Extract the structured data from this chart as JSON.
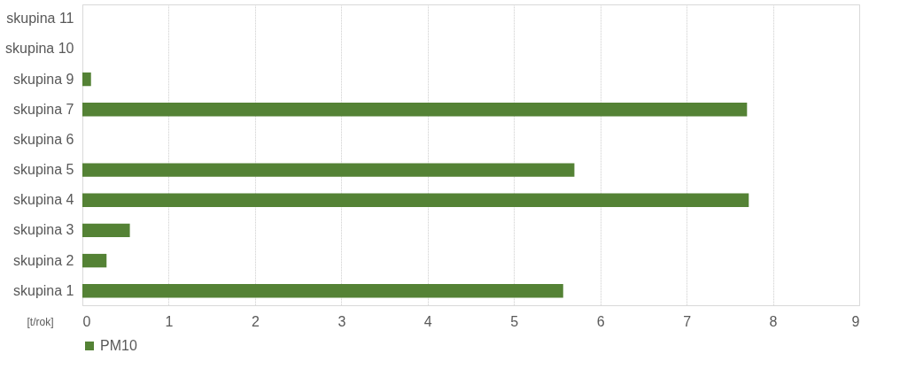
{
  "chart_data": {
    "type": "bar",
    "orientation": "horizontal",
    "xlabel": "[t/rok]",
    "categories": [
      "skupina 11",
      "skupina 10",
      "skupina 9",
      "skupina 7",
      "skupina 6",
      "skupina 5",
      "skupina 4",
      "skupina 3",
      "skupina 2",
      "skupina 1"
    ],
    "series": [
      {
        "name": "PM10",
        "color": "#548235",
        "values": [
          null,
          null,
          0.1,
          7.7,
          null,
          5.7,
          7.72,
          0.55,
          0.28,
          5.57
        ]
      }
    ],
    "xlim": [
      0,
      9
    ],
    "xticks": [
      0,
      1,
      2,
      3,
      4,
      5,
      6,
      7,
      8,
      9
    ],
    "grid": "x",
    "legend": "bottom"
  }
}
